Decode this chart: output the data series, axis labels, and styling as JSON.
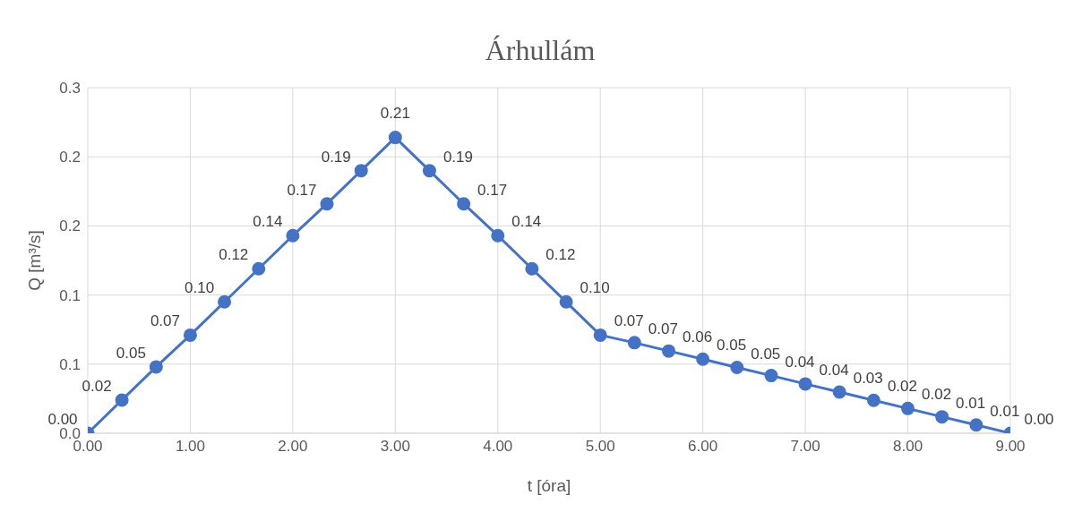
{
  "chart_data": {
    "type": "line",
    "title": "Árhullám",
    "xlabel": "t [óra]",
    "ylabel": "Q [m³/s]",
    "x": [
      0,
      0.333,
      0.667,
      1,
      1.333,
      1.667,
      2,
      2.333,
      2.667,
      3,
      3.333,
      3.667,
      4,
      4.333,
      4.667,
      5,
      5.333,
      5.667,
      6,
      6.333,
      6.667,
      7,
      7.333,
      7.667,
      8,
      8.333,
      8.667,
      9
    ],
    "series": [
      {
        "color": "#4472c4",
        "values": [
          0,
          0.024,
          0.048,
          0.071,
          0.095,
          0.119,
          0.143,
          0.166,
          0.19,
          0.214,
          0.19,
          0.166,
          0.143,
          0.119,
          0.095,
          0.071,
          0.0655,
          0.0595,
          0.0536,
          0.0476,
          0.0417,
          0.0357,
          0.0298,
          0.0238,
          0.0179,
          0.0119,
          0.006,
          0
        ],
        "value_labels": [
          "0.00",
          "0.02",
          "0.05",
          "0.07",
          "0.10",
          "0.12",
          "0.14",
          "0.17",
          "0.19",
          "0.21",
          "0.19",
          "0.17",
          "0.14",
          "0.12",
          "0.10",
          "0.07",
          "0.07",
          "0.06",
          "0.05",
          "0.05",
          "0.04",
          "0.04",
          "0.03",
          "0.02",
          "0.02",
          "0.01",
          "0.01",
          "0.00"
        ]
      }
    ],
    "xlim": [
      0,
      9
    ],
    "xticks": [
      {
        "value": 0,
        "label": "0.00"
      },
      {
        "value": 1,
        "label": "1.00"
      },
      {
        "value": 2,
        "label": "2.00"
      },
      {
        "value": 3,
        "label": "3.00"
      },
      {
        "value": 4,
        "label": "4.00"
      },
      {
        "value": 5,
        "label": "5.00"
      },
      {
        "value": 6,
        "label": "6.00"
      },
      {
        "value": 7,
        "label": "7.00"
      },
      {
        "value": 8,
        "label": "8.00"
      },
      {
        "value": 9,
        "label": "9.00"
      }
    ],
    "ylim": [
      0,
      0.25
    ],
    "yticks": [
      {
        "value": 0,
        "label": "0.0"
      },
      {
        "value": 0.05,
        "label": "0.1"
      },
      {
        "value": 0.1,
        "label": "0.1"
      },
      {
        "value": 0.15,
        "label": "0.2"
      },
      {
        "value": 0.2,
        "label": "0.2"
      },
      {
        "value": 0.25,
        "label": "0.3"
      }
    ],
    "grid": true,
    "marker": "circle",
    "line_style": "solid",
    "legend": false
  }
}
